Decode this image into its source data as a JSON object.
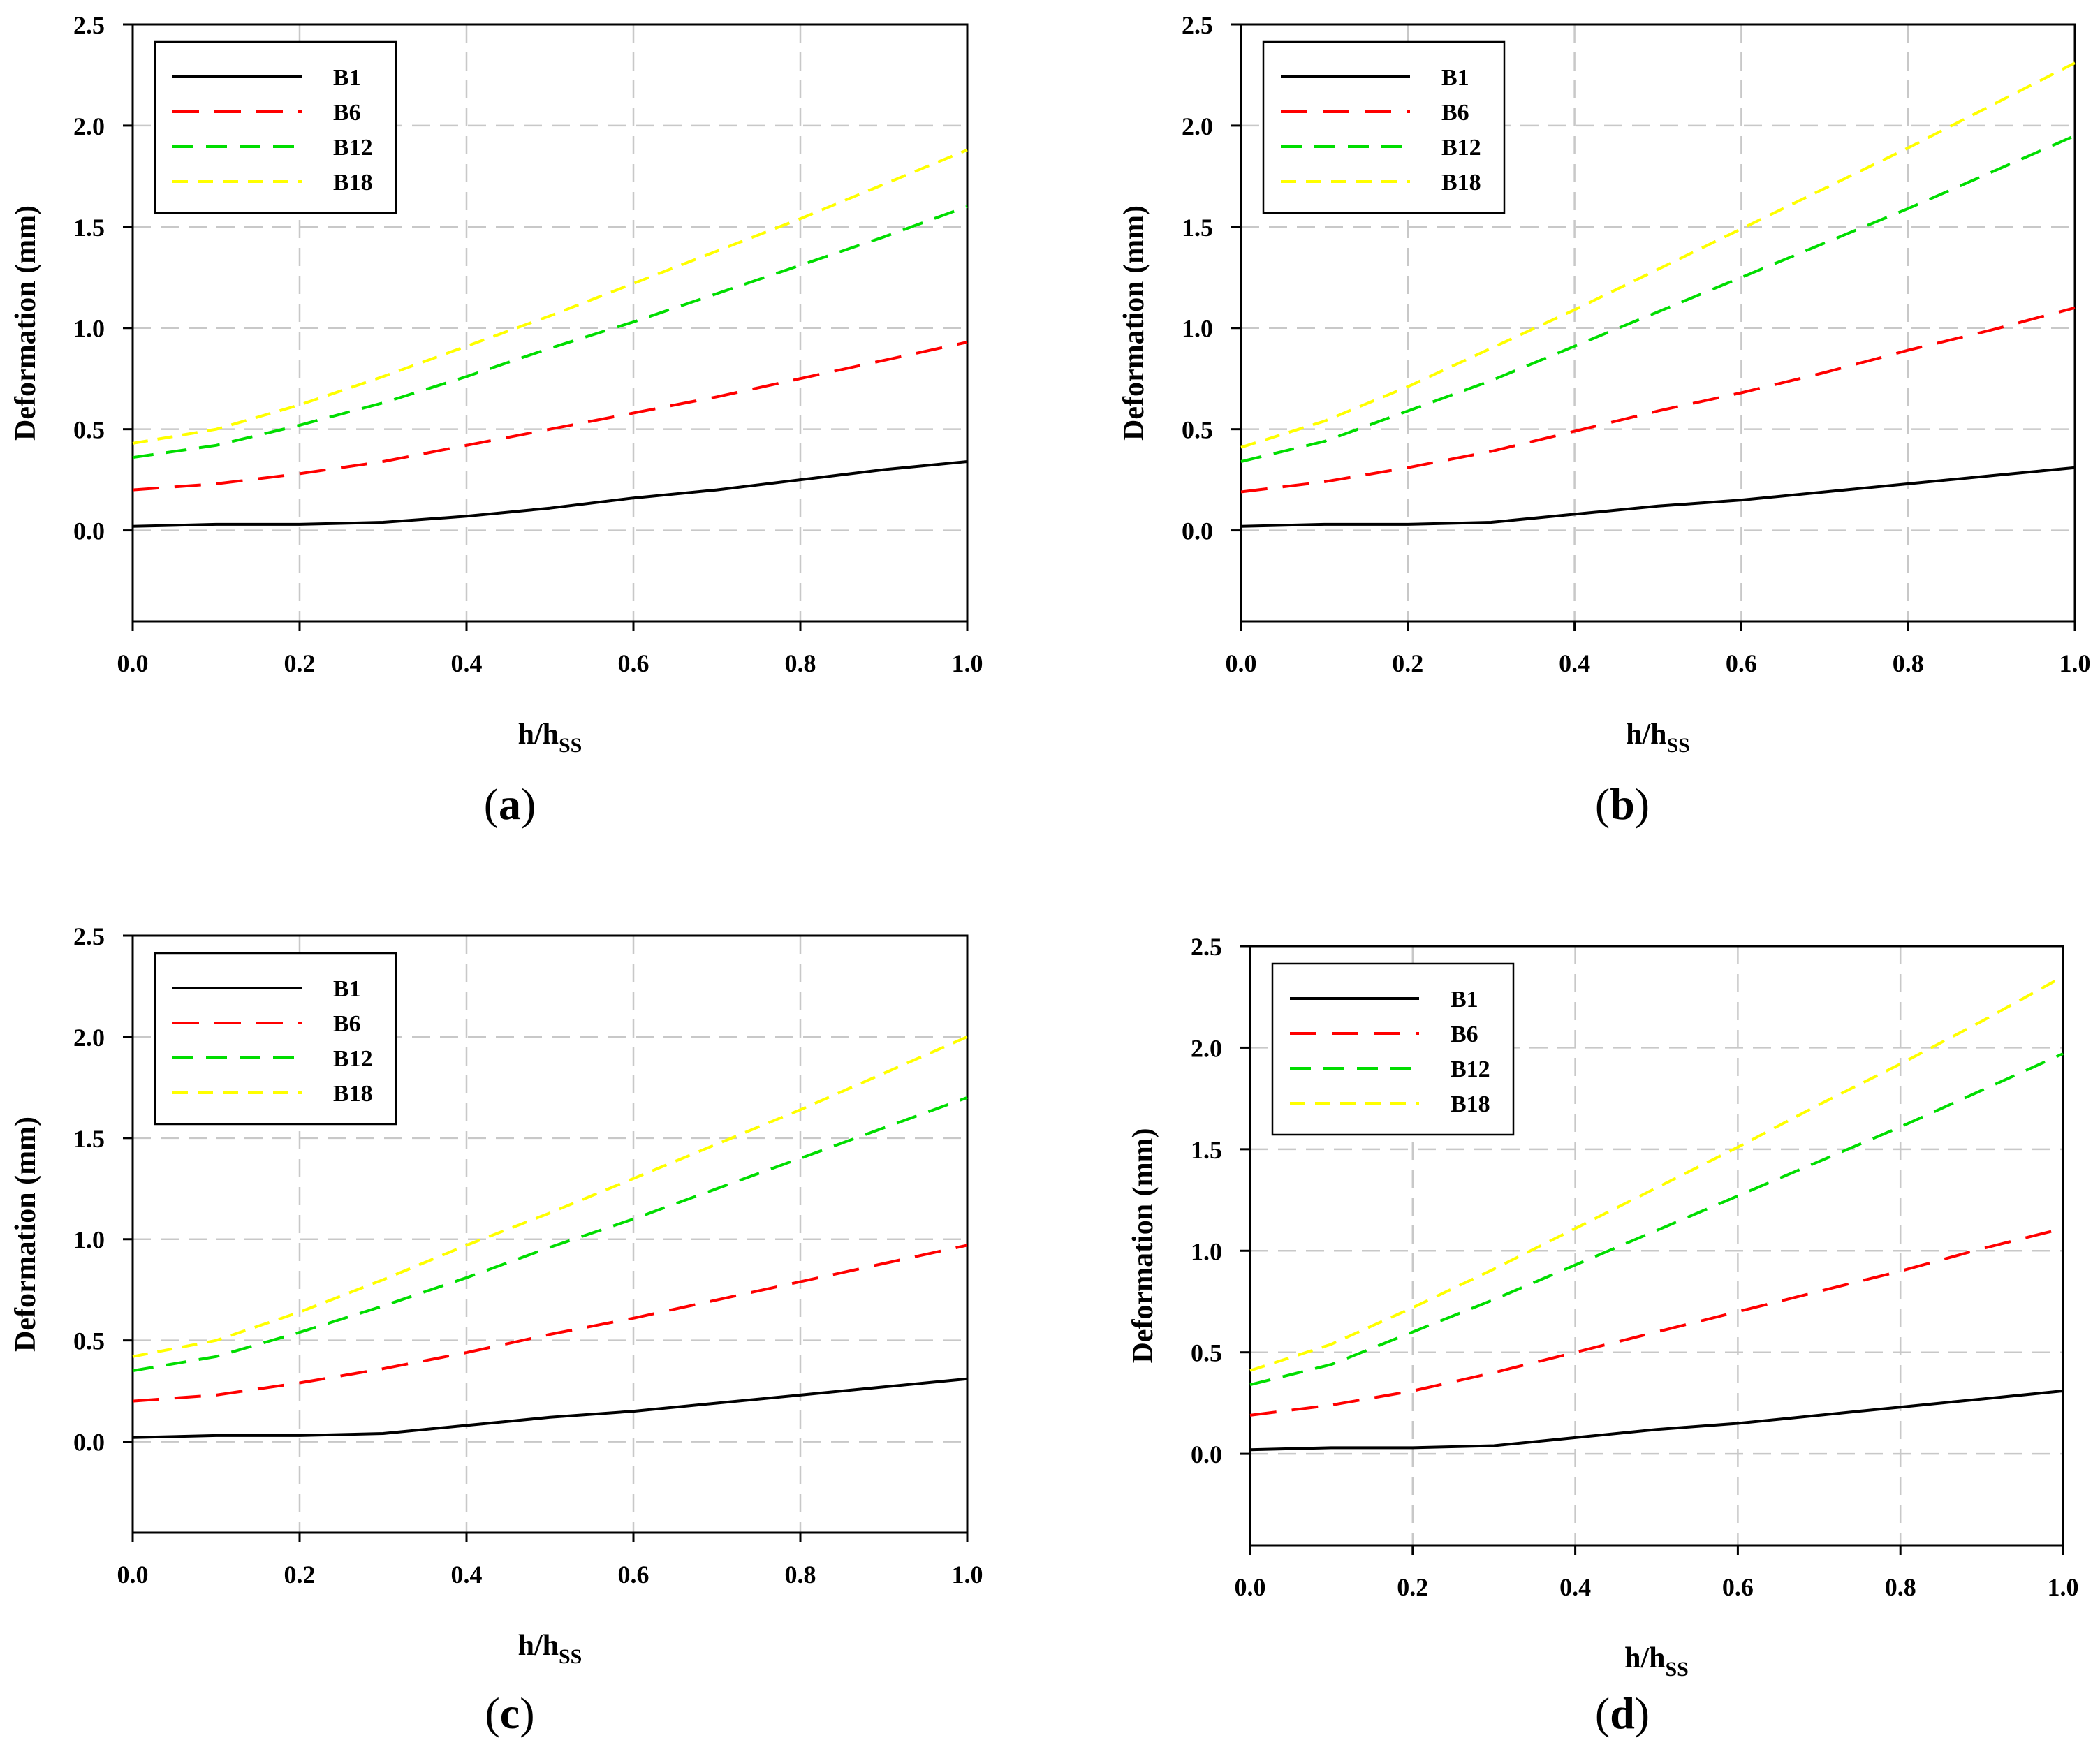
{
  "chart_data": [
    {
      "panel_label": "a",
      "type": "line",
      "xlabel_main": "h/h",
      "xlabel_sub": "SS",
      "ylabel": "Deformation (mm)",
      "xlim": [
        0,
        1.0
      ],
      "ylim": [
        -0.45,
        2.5
      ],
      "x_ticks": [
        "0.0",
        "0.2",
        "0.4",
        "0.6",
        "0.8",
        "1.0"
      ],
      "y_ticks": [
        "0.0",
        "0.5",
        "1.0",
        "1.5",
        "2.0",
        "2.5"
      ],
      "grid": true,
      "legend_position": "top-left",
      "x": [
        0.0,
        0.1,
        0.2,
        0.3,
        0.4,
        0.5,
        0.6,
        0.7,
        0.8,
        0.9,
        1.0
      ],
      "series": [
        {
          "name": "B1",
          "color": "#000000",
          "dash": "solid",
          "values": [
            0.02,
            0.03,
            0.03,
            0.04,
            0.07,
            0.11,
            0.16,
            0.2,
            0.25,
            0.3,
            0.34
          ]
        },
        {
          "name": "B6",
          "color": "#ff0000",
          "dash": "long",
          "values": [
            0.2,
            0.23,
            0.28,
            0.34,
            0.42,
            0.5,
            0.58,
            0.66,
            0.75,
            0.84,
            0.93
          ]
        },
        {
          "name": "B12",
          "color": "#00dd00",
          "dash": "medium",
          "values": [
            0.36,
            0.42,
            0.52,
            0.63,
            0.76,
            0.9,
            1.03,
            1.17,
            1.31,
            1.45,
            1.6
          ]
        },
        {
          "name": "B18",
          "color": "#ffff00",
          "dash": "short",
          "values": [
            0.43,
            0.5,
            0.62,
            0.76,
            0.91,
            1.06,
            1.22,
            1.38,
            1.54,
            1.71,
            1.88
          ]
        }
      ]
    },
    {
      "panel_label": "b",
      "type": "line",
      "xlabel_main": "h/h",
      "xlabel_sub": "SS",
      "ylabel": "Deformation (mm)",
      "xlim": [
        0,
        1.0
      ],
      "ylim": [
        -0.45,
        2.5
      ],
      "x_ticks": [
        "0.0",
        "0.2",
        "0.4",
        "0.6",
        "0.8",
        "1.0"
      ],
      "y_ticks": [
        "0.0",
        "0.5",
        "1.0",
        "1.5",
        "2.0",
        "2.5"
      ],
      "grid": true,
      "legend_position": "top-left",
      "x": [
        0.0,
        0.1,
        0.2,
        0.3,
        0.4,
        0.5,
        0.6,
        0.7,
        0.8,
        0.9,
        1.0
      ],
      "series": [
        {
          "name": "B1",
          "color": "#000000",
          "dash": "solid",
          "values": [
            0.02,
            0.03,
            0.03,
            0.04,
            0.08,
            0.12,
            0.15,
            0.19,
            0.23,
            0.27,
            0.31
          ]
        },
        {
          "name": "B6",
          "color": "#ff0000",
          "dash": "long",
          "values": [
            0.19,
            0.24,
            0.31,
            0.39,
            0.49,
            0.59,
            0.68,
            0.78,
            0.89,
            0.99,
            1.1
          ]
        },
        {
          "name": "B12",
          "color": "#00dd00",
          "dash": "medium",
          "values": [
            0.34,
            0.44,
            0.59,
            0.74,
            0.91,
            1.08,
            1.25,
            1.42,
            1.59,
            1.77,
            1.95
          ]
        },
        {
          "name": "B18",
          "color": "#ffff00",
          "dash": "short",
          "values": [
            0.41,
            0.54,
            0.71,
            0.9,
            1.09,
            1.29,
            1.49,
            1.69,
            1.89,
            2.1,
            2.31
          ]
        }
      ]
    },
    {
      "panel_label": "c",
      "type": "line",
      "xlabel_main": "h/h",
      "xlabel_sub": "SS",
      "ylabel": "Deformation (mm)",
      "xlim": [
        0,
        1.0
      ],
      "ylim": [
        -0.45,
        2.5
      ],
      "x_ticks": [
        "0.0",
        "0.2",
        "0.4",
        "0.6",
        "0.8",
        "1.0"
      ],
      "y_ticks": [
        "0.0",
        "0.5",
        "1.0",
        "1.5",
        "2.0",
        "2.5"
      ],
      "grid": true,
      "legend_position": "top-left",
      "x": [
        0.0,
        0.1,
        0.2,
        0.3,
        0.4,
        0.5,
        0.6,
        0.7,
        0.8,
        0.9,
        1.0
      ],
      "series": [
        {
          "name": "B1",
          "color": "#000000",
          "dash": "solid",
          "values": [
            0.02,
            0.03,
            0.03,
            0.04,
            0.08,
            0.12,
            0.15,
            0.19,
            0.23,
            0.27,
            0.31
          ]
        },
        {
          "name": "B6",
          "color": "#ff0000",
          "dash": "long",
          "values": [
            0.2,
            0.23,
            0.29,
            0.36,
            0.44,
            0.53,
            0.61,
            0.7,
            0.79,
            0.88,
            0.97
          ]
        },
        {
          "name": "B12",
          "color": "#00dd00",
          "dash": "medium",
          "values": [
            0.35,
            0.42,
            0.54,
            0.67,
            0.81,
            0.96,
            1.1,
            1.25,
            1.4,
            1.55,
            1.7
          ]
        },
        {
          "name": "B18",
          "color": "#ffff00",
          "dash": "short",
          "values": [
            0.42,
            0.5,
            0.64,
            0.8,
            0.97,
            1.13,
            1.3,
            1.47,
            1.64,
            1.82,
            2.0
          ]
        }
      ]
    },
    {
      "panel_label": "d",
      "type": "line",
      "xlabel_main": "h/h",
      "xlabel_sub": "SS",
      "ylabel": "Deformation (mm)",
      "xlim": [
        0,
        1.0
      ],
      "ylim": [
        -0.45,
        2.5
      ],
      "x_ticks": [
        "0.0",
        "0.2",
        "0.4",
        "0.6",
        "0.8",
        "1.0"
      ],
      "y_ticks": [
        "0.0",
        "0.5",
        "1.0",
        "1.5",
        "2.0",
        "2.5"
      ],
      "grid": true,
      "legend_position": "top-left",
      "x": [
        0.0,
        0.1,
        0.2,
        0.3,
        0.4,
        0.5,
        0.6,
        0.7,
        0.8,
        0.9,
        1.0
      ],
      "series": [
        {
          "name": "B1",
          "color": "#000000",
          "dash": "solid",
          "values": [
            0.02,
            0.03,
            0.03,
            0.04,
            0.08,
            0.12,
            0.15,
            0.19,
            0.23,
            0.27,
            0.31
          ]
        },
        {
          "name": "B6",
          "color": "#ff0000",
          "dash": "long",
          "values": [
            0.19,
            0.24,
            0.31,
            0.4,
            0.5,
            0.6,
            0.7,
            0.8,
            0.9,
            1.01,
            1.11
          ]
        },
        {
          "name": "B12",
          "color": "#00dd00",
          "dash": "medium",
          "values": [
            0.34,
            0.44,
            0.6,
            0.76,
            0.93,
            1.1,
            1.27,
            1.44,
            1.61,
            1.79,
            1.97
          ]
        },
        {
          "name": "B18",
          "color": "#ffff00",
          "dash": "short",
          "values": [
            0.41,
            0.54,
            0.72,
            0.91,
            1.11,
            1.31,
            1.51,
            1.72,
            1.92,
            2.13,
            2.35
          ]
        }
      ]
    }
  ]
}
